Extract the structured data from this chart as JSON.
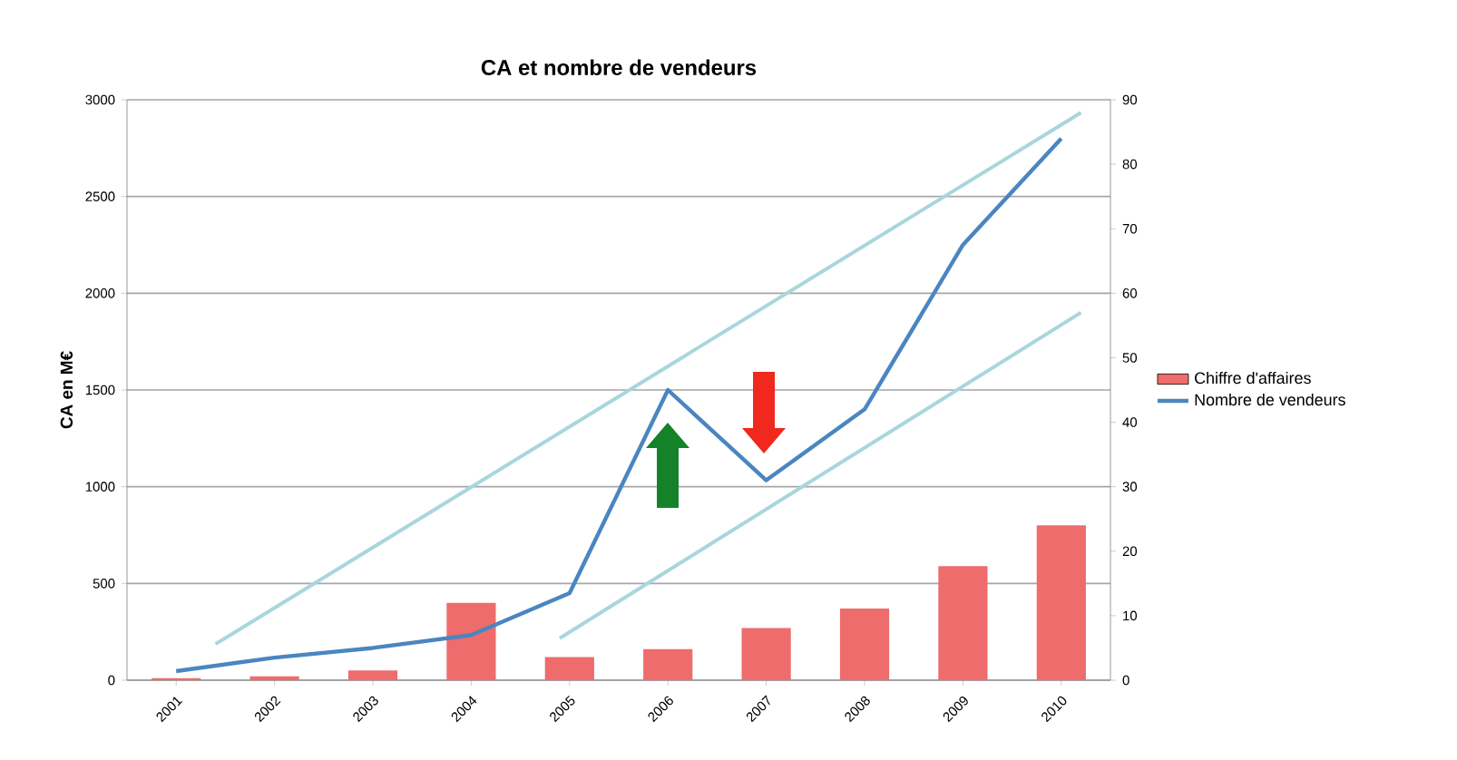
{
  "chart_data": {
    "type": "bar",
    "title": "CA et nombre de vendeurs",
    "ylabel": "CA en M€",
    "x": [
      2001,
      2002,
      2003,
      2004,
      2005,
      2006,
      2007,
      2008,
      2009,
      2010
    ],
    "xlim": [
      2000.5,
      2010.5
    ],
    "xticks": [
      2001,
      2002,
      2003,
      2004,
      2005,
      2006,
      2007,
      2008,
      2009,
      2010
    ],
    "ylim": [
      0,
      3000
    ],
    "yticks": [
      0,
      500,
      1000,
      1500,
      2000,
      2500,
      3000
    ],
    "y2lim": [
      0,
      90
    ],
    "y2ticks": [
      0,
      10,
      20,
      30,
      40,
      50,
      60,
      70,
      80,
      90
    ],
    "grid": "y",
    "legend": "right",
    "series": [
      {
        "name": "Chiffre d'affaires",
        "color": "#ee6c6c",
        "values": [
          10,
          20,
          50,
          400,
          120,
          160,
          270,
          370,
          590,
          800
        ]
      },
      {
        "name": "Nombre de vendeurs",
        "type": "line",
        "axis": "y2",
        "color": "#4a86c0",
        "values": [
          1.4,
          3.5,
          5,
          7,
          13.5,
          45,
          31,
          42,
          67.5,
          84
        ]
      },
      {
        "type": "line",
        "axis": "y2",
        "color": "#a9d6dc",
        "x": [
          2001.4,
          2010.2
        ],
        "values": [
          5.6,
          88
        ]
      },
      {
        "type": "line",
        "axis": "y2",
        "color": "#a9d6dc",
        "x": [
          2004.9,
          2010.2
        ],
        "values": [
          6.5,
          57
        ]
      }
    ]
  }
}
